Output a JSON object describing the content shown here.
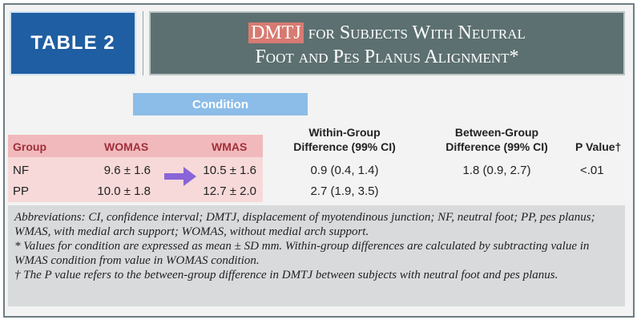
{
  "table_label": "TABLE 2",
  "title": {
    "highlight": "DMTJ",
    "line1_rest": " for Subjects With Neutral",
    "line2": "Foot and Pes Planus Alignment*"
  },
  "condition_header": "Condition",
  "headers": {
    "group": "Group",
    "womas": "WOMAS",
    "wmas": "WMAS",
    "within_l1": "Within-Group",
    "within_l2": "Difference (99% CI)",
    "between_l1": "Between-Group",
    "between_l2": "Difference (99% CI)",
    "p_value": "P Value†"
  },
  "rows": [
    {
      "group": "NF",
      "womas": "9.6 ± 1.6",
      "wmas": "10.5 ± 1.6",
      "within": "0.9 (0.4, 1.4)",
      "between": "1.8 (0.9, 2.7)",
      "p": "<.01"
    },
    {
      "group": "PP",
      "womas": "10.0 ± 1.8",
      "wmas": "12.7 ± 2.0",
      "within": "2.7 (1.9, 3.5)",
      "between": "",
      "p": ""
    }
  ],
  "notes": {
    "abbr": "Abbreviations: CI, confidence interval; DMTJ, displacement of myotendinous junction; NF, neutral foot; PP, pes planus; WMAS, with medial arch support; WOMAS, without medial arch support.",
    "star": "* Values for condition are expressed as mean ± SD mm. Within-group differences are calculated by subtracting value in WMAS condition from value in WOMAS condition.",
    "dagger": "† The P value refers to the between-group difference in DMTJ between subjects with neutral foot and pes planus."
  },
  "colors": {
    "badge": "#1f5ea2",
    "title_box": "#5d7071",
    "highlight": "#d87a72",
    "condition": "#8cbde8",
    "pink_header": "#f1b9bc",
    "pink_band": "#f7d9d9",
    "arrow": "#8a64d8"
  }
}
